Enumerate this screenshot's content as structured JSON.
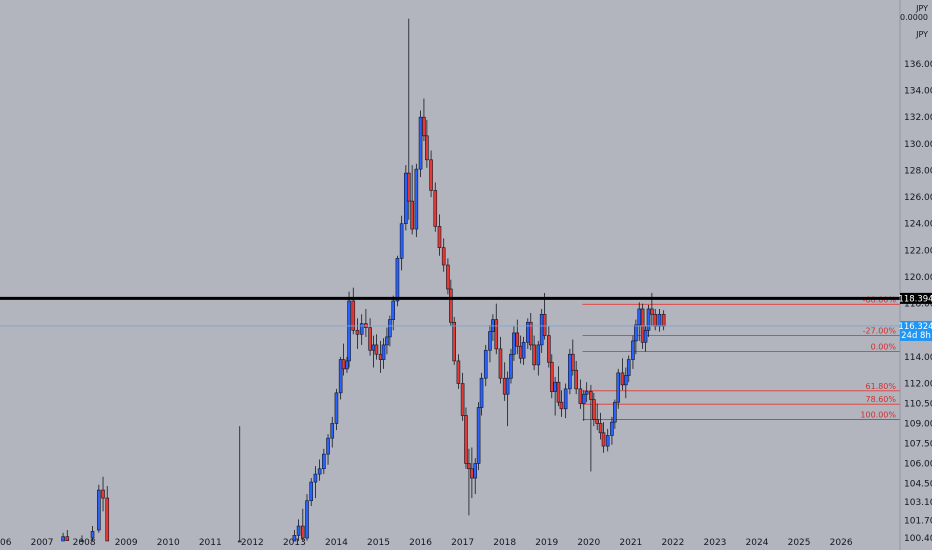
{
  "chart_data": {
    "type": "candlestick",
    "currency_label_top": "JPY",
    "currency_label_value": "0.0000",
    "currency_label_bottom": "JPY",
    "ylim": [
      99.5,
      140.8
    ],
    "xlim": [
      2006.0,
      2027.4
    ],
    "y_ticks": [
      "138.000",
      "136.000",
      "134.000",
      "132.000",
      "130.000",
      "128.000",
      "126.000",
      "124.000",
      "122.000",
      "120.000",
      "118.000",
      "116.000",
      "114.000",
      "112.000",
      "110.500",
      "109.000",
      "107.500",
      "106.000",
      "104.500",
      "103.100",
      "101.700",
      "100.400"
    ],
    "x_ticks": [
      "2006",
      "2007",
      "2008",
      "2009",
      "2010",
      "2011",
      "2012",
      "2013",
      "2014",
      "2015",
      "2016",
      "2017",
      "2018",
      "2019",
      "2020",
      "2021",
      "2022",
      "2023",
      "2024",
      "2025",
      "2026"
    ],
    "resistance": {
      "value": 118.394,
      "label": "118.394"
    },
    "current_price": {
      "value": 116.324,
      "label": "116.324",
      "countdown": "24d 8h"
    },
    "fib_levels": [
      {
        "label": "-68.00%",
        "value": 117.95
      },
      {
        "label": "-27.00%",
        "value": 115.6
      },
      {
        "label": "0.00%",
        "value": 114.4
      },
      {
        "label": "61.80%",
        "value": 111.45
      },
      {
        "label": "78.60%",
        "value": 110.45
      },
      {
        "label": "100.00%",
        "value": 109.3
      }
    ],
    "fib_x_start": 2019.85,
    "candles": [
      [
        2007.5,
        100.0,
        100.8,
        99.0,
        100.5
      ],
      [
        2007.6,
        100.5,
        101.0,
        99.8,
        100.2
      ],
      [
        2007.95,
        99.8,
        100.6,
        99.0,
        100.2
      ],
      [
        2008.2,
        100.4,
        101.3,
        99.9,
        100.9
      ],
      [
        2008.35,
        101.0,
        104.4,
        100.8,
        104.0
      ],
      [
        2008.45,
        104.0,
        105.0,
        102.4,
        103.4
      ],
      [
        2008.55,
        103.4,
        104.3,
        99.5,
        99.9
      ],
      [
        2011.7,
        99.5,
        108.8,
        99.0,
        100.0
      ],
      [
        2013.0,
        99.8,
        101.0,
        99.3,
        100.6
      ],
      [
        2013.1,
        100.6,
        101.8,
        100.0,
        101.3
      ],
      [
        2013.2,
        101.3,
        102.6,
        100.1,
        100.4
      ],
      [
        2013.3,
        100.4,
        103.7,
        100.2,
        103.2
      ],
      [
        2013.4,
        103.2,
        104.9,
        102.8,
        104.6
      ],
      [
        2013.5,
        104.6,
        105.8,
        103.4,
        105.2
      ],
      [
        2013.6,
        105.2,
        106.3,
        104.7,
        105.6
      ],
      [
        2013.7,
        105.6,
        107.1,
        105.2,
        106.7
      ],
      [
        2013.8,
        106.7,
        108.2,
        105.9,
        107.9
      ],
      [
        2013.9,
        107.9,
        109.5,
        107.2,
        109.0
      ],
      [
        2014.0,
        109.0,
        111.6,
        108.5,
        111.3
      ],
      [
        2014.1,
        111.3,
        114.0,
        110.8,
        113.8
      ],
      [
        2014.17,
        113.8,
        115.0,
        112.6,
        113.1
      ],
      [
        2014.25,
        113.1,
        114.0,
        112.8,
        113.7
      ],
      [
        2014.3,
        113.7,
        118.9,
        113.2,
        118.2
      ],
      [
        2014.4,
        118.2,
        119.2,
        115.7,
        116.0
      ],
      [
        2014.5,
        116.0,
        116.9,
        114.6,
        115.7
      ],
      [
        2014.6,
        115.7,
        117.2,
        114.9,
        116.5
      ],
      [
        2014.7,
        116.5,
        117.6,
        115.5,
        116.2
      ],
      [
        2014.8,
        116.2,
        116.9,
        114.1,
        114.5
      ],
      [
        2014.88,
        114.5,
        115.6,
        113.2,
        114.9
      ],
      [
        2014.95,
        114.9,
        115.7,
        113.8,
        114.2
      ],
      [
        2015.05,
        114.2,
        115.2,
        112.8,
        113.8
      ],
      [
        2015.12,
        113.8,
        115.4,
        113.1,
        114.9
      ],
      [
        2015.2,
        114.9,
        116.2,
        114.2,
        115.5
      ],
      [
        2015.27,
        115.5,
        117.1,
        114.8,
        116.8
      ],
      [
        2015.35,
        116.8,
        118.6,
        116.0,
        118.2
      ],
      [
        2015.45,
        118.2,
        121.6,
        117.8,
        121.4
      ],
      [
        2015.55,
        121.4,
        124.6,
        120.5,
        124.0
      ],
      [
        2015.65,
        124.0,
        128.4,
        123.5,
        127.8
      ],
      [
        2015.72,
        127.8,
        139.4,
        124.3,
        125.7
      ],
      [
        2015.8,
        125.7,
        128.4,
        123.2,
        123.6
      ],
      [
        2015.9,
        123.6,
        128.5,
        123.0,
        128.1
      ],
      [
        2016.0,
        128.1,
        132.5,
        127.5,
        132.0
      ],
      [
        2016.08,
        132.0,
        133.4,
        130.2,
        130.6
      ],
      [
        2016.15,
        130.6,
        131.8,
        128.2,
        128.8
      ],
      [
        2016.25,
        128.8,
        129.5,
        126.0,
        126.5
      ],
      [
        2016.35,
        126.5,
        127.1,
        123.4,
        123.8
      ],
      [
        2016.45,
        123.8,
        124.7,
        121.6,
        122.2
      ],
      [
        2016.55,
        122.2,
        122.9,
        120.4,
        120.9
      ],
      [
        2016.65,
        120.9,
        121.4,
        118.7,
        119.1
      ],
      [
        2016.72,
        119.1,
        119.8,
        116.3,
        116.6
      ],
      [
        2016.8,
        116.6,
        117.0,
        113.4,
        113.7
      ],
      [
        2016.9,
        113.7,
        114.2,
        111.6,
        112.0
      ],
      [
        2017.0,
        112.0,
        112.8,
        109.2,
        109.6
      ],
      [
        2017.08,
        109.6,
        110.2,
        105.6,
        106.0
      ],
      [
        2017.15,
        106.0,
        107.1,
        102.1,
        105.6
      ],
      [
        2017.22,
        105.6,
        107.2,
        103.4,
        104.9
      ],
      [
        2017.3,
        104.9,
        106.4,
        103.7,
        106.0
      ],
      [
        2017.38,
        106.0,
        110.6,
        105.5,
        110.2
      ],
      [
        2017.45,
        110.2,
        112.8,
        109.6,
        112.4
      ],
      [
        2017.55,
        112.4,
        114.9,
        111.8,
        114.5
      ],
      [
        2017.65,
        114.5,
        116.4,
        113.6,
        115.9
      ],
      [
        2017.72,
        115.9,
        117.2,
        115.2,
        116.8
      ],
      [
        2017.8,
        116.8,
        118.0,
        114.2,
        114.6
      ],
      [
        2017.9,
        114.6,
        115.5,
        112.0,
        112.4
      ],
      [
        2018.0,
        112.4,
        113.6,
        110.7,
        111.2
      ],
      [
        2018.07,
        111.2,
        112.9,
        108.8,
        112.4
      ],
      [
        2018.15,
        112.4,
        114.6,
        112.0,
        114.2
      ],
      [
        2018.22,
        114.2,
        116.3,
        113.7,
        115.8
      ],
      [
        2018.3,
        115.8,
        116.8,
        114.2,
        114.8
      ],
      [
        2018.38,
        114.8,
        115.6,
        113.5,
        113.9
      ],
      [
        2018.45,
        113.9,
        115.5,
        113.4,
        115.1
      ],
      [
        2018.55,
        115.1,
        116.9,
        114.6,
        116.6
      ],
      [
        2018.62,
        116.6,
        117.3,
        114.5,
        114.9
      ],
      [
        2018.7,
        114.9,
        115.6,
        113.0,
        113.4
      ],
      [
        2018.8,
        113.4,
        115.2,
        112.6,
        114.9
      ],
      [
        2018.88,
        114.9,
        117.6,
        114.3,
        117.2
      ],
      [
        2018.95,
        117.2,
        118.8,
        115.3,
        115.6
      ],
      [
        2019.05,
        115.6,
        116.3,
        113.2,
        113.6
      ],
      [
        2019.12,
        113.6,
        114.2,
        110.9,
        111.4
      ],
      [
        2019.2,
        111.4,
        112.5,
        109.6,
        112.1
      ],
      [
        2019.28,
        112.1,
        113.3,
        110.3,
        110.6
      ],
      [
        2019.35,
        110.6,
        111.5,
        109.5,
        110.1
      ],
      [
        2019.45,
        110.1,
        112.0,
        109.4,
        111.6
      ],
      [
        2019.55,
        111.6,
        114.6,
        111.2,
        114.2
      ],
      [
        2019.62,
        114.2,
        115.3,
        112.6,
        113.0
      ],
      [
        2019.7,
        113.0,
        113.7,
        111.2,
        111.6
      ],
      [
        2019.8,
        111.6,
        112.3,
        110.1,
        110.5
      ],
      [
        2019.88,
        110.5,
        111.5,
        109.2,
        111.2
      ],
      [
        2019.95,
        111.2,
        112.1,
        110.6,
        111.4
      ],
      [
        2020.05,
        111.4,
        111.9,
        105.4,
        110.8
      ],
      [
        2020.12,
        110.8,
        111.3,
        108.8,
        109.3
      ],
      [
        2020.2,
        109.3,
        110.5,
        108.5,
        109.0
      ],
      [
        2020.28,
        109.0,
        109.8,
        107.8,
        108.3
      ],
      [
        2020.35,
        108.3,
        109.1,
        106.8,
        107.3
      ],
      [
        2020.45,
        107.3,
        108.6,
        106.9,
        108.1
      ],
      [
        2020.55,
        108.1,
        109.5,
        107.4,
        109.1
      ],
      [
        2020.62,
        109.1,
        110.8,
        108.6,
        110.6
      ],
      [
        2020.7,
        110.6,
        113.1,
        110.1,
        112.8
      ],
      [
        2020.8,
        112.8,
        113.9,
        111.5,
        111.9
      ],
      [
        2020.88,
        111.9,
        113.2,
        110.9,
        112.6
      ],
      [
        2020.95,
        112.6,
        114.1,
        112.1,
        113.8
      ],
      [
        2021.05,
        113.8,
        115.6,
        113.1,
        115.2
      ],
      [
        2021.12,
        115.2,
        116.8,
        114.2,
        116.4
      ],
      [
        2021.2,
        116.4,
        118.1,
        115.2,
        117.6
      ],
      [
        2021.28,
        117.6,
        118.0,
        114.6,
        115.1
      ],
      [
        2021.35,
        115.1,
        116.3,
        114.4,
        116.0
      ],
      [
        2021.42,
        116.0,
        117.9,
        115.5,
        117.6
      ],
      [
        2021.5,
        117.6,
        118.8,
        116.3,
        117.2
      ],
      [
        2021.58,
        117.2,
        117.6,
        116.0,
        116.3
      ],
      [
        2021.68,
        116.3,
        117.6,
        115.9,
        117.2
      ],
      [
        2021.78,
        117.2,
        117.5,
        116.0,
        116.3
      ]
    ]
  }
}
